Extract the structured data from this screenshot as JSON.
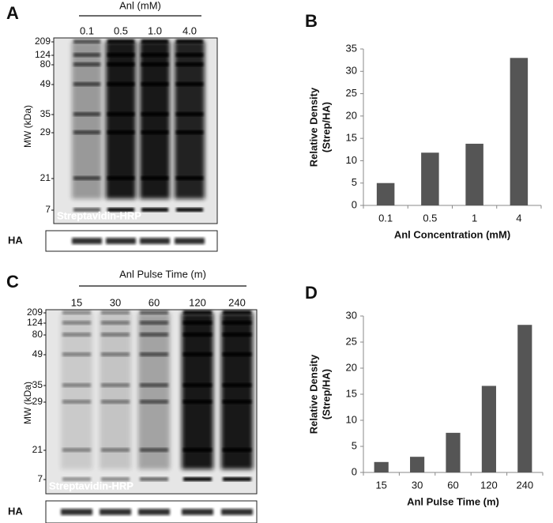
{
  "panels": [
    "A",
    "B",
    "C",
    "D"
  ],
  "blots": [
    {
      "title": "Anl (mM)",
      "lanes": [
        "0.1",
        "0.5",
        "1.0",
        "4.0"
      ],
      "mw": [
        209,
        124,
        80,
        49,
        35,
        29,
        21,
        7
      ],
      "mw_label": "MW (kDa)",
      "stain": "Streptavidin-HRP",
      "loading": "HA"
    },
    {
      "title": "Anl Pulse Time (m)",
      "lanes": [
        "15",
        "30",
        "60",
        "120",
        "240"
      ],
      "mw": [
        209,
        124,
        80,
        49,
        35,
        29,
        21,
        7
      ],
      "mw_label": "MW (kDa)",
      "stain": "Streptavidin-HRP",
      "loading": "HA"
    }
  ],
  "chart_data": [
    {
      "type": "bar",
      "categories": [
        "0.1",
        "0.5",
        "1",
        "4"
      ],
      "values": [
        5,
        11.8,
        13.8,
        33
      ],
      "color": "#555555",
      "ylabel": [
        "Relative Density",
        "(Strep/HA)"
      ],
      "xlabel": "Anl Concentration (mM)",
      "ylim": [
        0,
        35
      ],
      "yticks": [
        0,
        5,
        10,
        15,
        20,
        25,
        30,
        35
      ],
      "grid": false
    },
    {
      "type": "bar",
      "categories": [
        "15",
        "30",
        "60",
        "120",
        "240"
      ],
      "values": [
        2,
        3,
        7.6,
        16.6,
        28.3
      ],
      "color": "#555555",
      "ylabel": [
        "Relative Density",
        "(Strep/HA)"
      ],
      "xlabel": "Anl Pulse Time (m)",
      "ylim": [
        0,
        30
      ],
      "yticks": [
        0,
        5,
        10,
        15,
        20,
        25,
        30
      ],
      "grid": false
    }
  ]
}
